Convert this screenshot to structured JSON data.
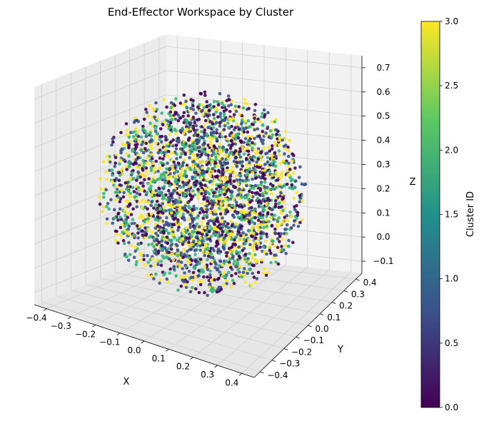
{
  "chart_data": {
    "type": "scatter",
    "projection": "3d",
    "title": "End-Effector Workspace by Cluster",
    "xlabel": "X",
    "ylabel": "Y",
    "zlabel": "Z",
    "xlim": [
      -0.45,
      0.45
    ],
    "ylim": [
      -0.45,
      0.45
    ],
    "zlim": [
      -0.15,
      0.75
    ],
    "x_ticks": [
      "−0.4",
      "−0.3",
      "−0.2",
      "−0.1",
      "0.0",
      "0.1",
      "0.2",
      "0.3",
      "0.4"
    ],
    "y_ticks": [
      "−0.4",
      "−0.3",
      "−0.2",
      "−0.1",
      "0.0",
      "0.1",
      "0.2",
      "0.3",
      "0.4"
    ],
    "z_ticks": [
      "−0.1",
      "0.0",
      "0.1",
      "0.2",
      "0.3",
      "0.4",
      "0.5",
      "0.6",
      "0.7"
    ],
    "grid": true,
    "point_distribution": {
      "shape": "sphere",
      "center": [
        0.0,
        0.0,
        0.3
      ],
      "radius": 0.4,
      "point_count": 3000,
      "cluster_ids": [
        0,
        1,
        2,
        3
      ]
    },
    "colorbar": {
      "label": "Cluster ID",
      "min": 0.0,
      "max": 3.0,
      "ticks": [
        "0.0",
        "0.5",
        "1.0",
        "1.5",
        "2.0",
        "2.5",
        "3.0"
      ],
      "colormap": "viridis",
      "colors": [
        "#440154",
        "#3b528b",
        "#21918c",
        "#5ec962",
        "#fde725"
      ]
    }
  }
}
